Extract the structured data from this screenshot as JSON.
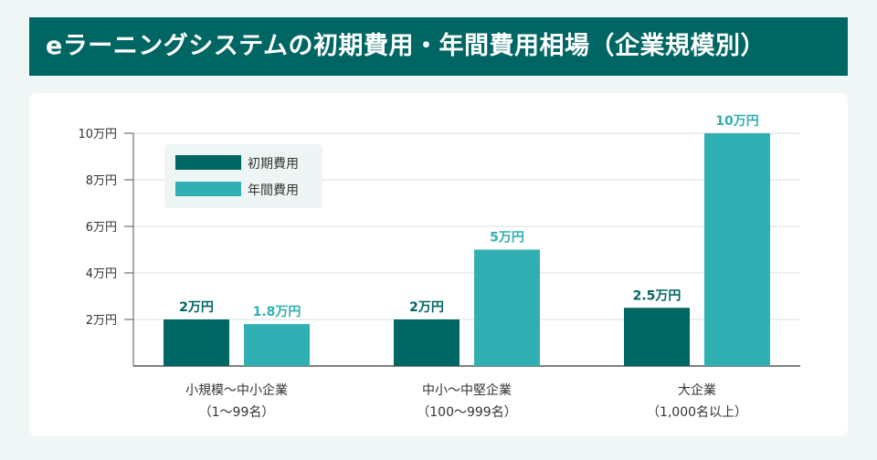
{
  "title": "eラーニングシステムの初期費用・年間費用相場（企業規模別）",
  "colors": {
    "background": "#eef7f6",
    "title_bar": "#006663",
    "initial": "#006663",
    "annual": "#30b0b2",
    "axis": "#555555",
    "grid": "#dddddd"
  },
  "chart_data": {
    "type": "bar",
    "title": "eラーニングシステムの初期費用・年間費用相場（企業規模別）",
    "categories": [
      {
        "line1": "小規模〜中小企業",
        "line2": "（1〜99名）"
      },
      {
        "line1": "中小〜中堅企業",
        "line2": "（100〜999名）"
      },
      {
        "line1": "大企業",
        "line2": "（1,000名以上）"
      }
    ],
    "series": [
      {
        "name": "初期費用",
        "color": "#006663",
        "values": [
          2,
          2,
          2.5
        ],
        "labels": [
          "2万円",
          "2万円",
          "2.5万円"
        ]
      },
      {
        "name": "年間費用",
        "color": "#30b0b2",
        "values": [
          1.8,
          5,
          10
        ],
        "labels": [
          "1.8万円",
          "5万円",
          "10万円"
        ]
      }
    ],
    "yticks": [
      {
        "value": 2,
        "label": "2万円"
      },
      {
        "value": 4,
        "label": "4万円"
      },
      {
        "value": 6,
        "label": "6万円"
      },
      {
        "value": 8,
        "label": "8万円"
      },
      {
        "value": 10,
        "label": "10万円"
      }
    ],
    "ylim": [
      0,
      10
    ],
    "unit": "万円",
    "grid": true,
    "legend": "top-left"
  }
}
